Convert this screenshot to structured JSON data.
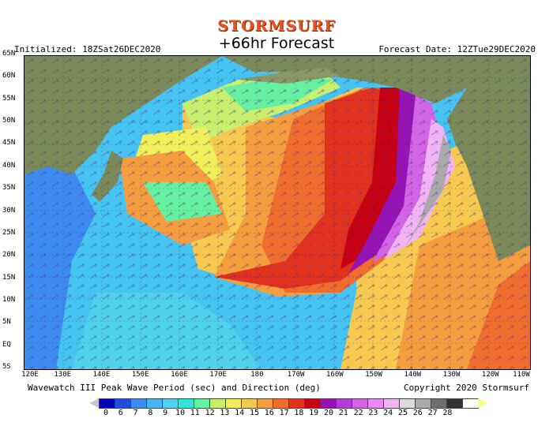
{
  "header": {
    "brand": "STORMSURF",
    "title": "+66hr Forecast",
    "initialized": "Initialized: 18ZSat26DEC2020",
    "forecast_date": "Forecast Date: 12ZTue29DEC2020"
  },
  "footer": {
    "left": "Wavewatch III Peak Wave Period (sec) and Direction (deg)",
    "right": "Copyright 2020 Stormsurf"
  },
  "map": {
    "lat_labels": [
      "65N",
      "60N",
      "55N",
      "50N",
      "45N",
      "40N",
      "35N",
      "30N",
      "25N",
      "20N",
      "15N",
      "10N",
      "5N",
      "EQ",
      "5S"
    ],
    "lon_labels": [
      "120E",
      "130E",
      "140E",
      "150E",
      "160E",
      "170E",
      "180",
      "170W",
      "160W",
      "150W",
      "140W",
      "130W",
      "120W",
      "110W"
    ],
    "colors": {
      "land": "#7a8a58",
      "ocean_low": "#33aaee"
    }
  },
  "legend": {
    "labels": [
      "0",
      "6",
      "7",
      "8",
      "9",
      "10",
      "11",
      "12",
      "13",
      "14",
      "15",
      "16",
      "17",
      "18",
      "19",
      "20",
      "21",
      "22",
      "23",
      "24",
      "25",
      "26",
      "27",
      "28"
    ],
    "colors": [
      "#0000b0",
      "#1e50dc",
      "#3c8cf0",
      "#46b4f5",
      "#50d2ee",
      "#30e6d2",
      "#64f0a0",
      "#c8f06e",
      "#f0f05a",
      "#f5c850",
      "#f59e40",
      "#f06e2d",
      "#e1321e",
      "#c80014",
      "#9614b4",
      "#b43cdc",
      "#d264e6",
      "#e68cf0",
      "#f0b4f5",
      "#dcdcdc",
      "#aaaaaa",
      "#6e6e6e",
      "#323232",
      "#ffffff",
      "#ffff78"
    ]
  }
}
